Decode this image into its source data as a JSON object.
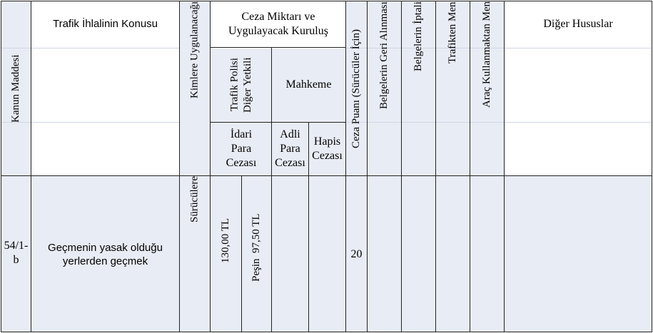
{
  "header": {
    "kanun_maddesi": "Kanun Maddesi",
    "ihlal_konusu": "Trafik İhlalinin Konusu",
    "kimlere": "Kimlere Uygulanacağı",
    "ceza_miktari": "Ceza Miktarı ve Uygulayacak Kuruluş",
    "trafik_polisi": "Trafik Polisi Diğer Yetkili",
    "mahkeme": "Mahkeme",
    "idari_para": "İdari Para Cezası",
    "adli_para": "Adli Para Cezası",
    "hapis": "Hapis Cezası",
    "ceza_puani": "Ceza Puanı (Sürücüler İçin)",
    "belge_geri": "Belgelerin Geri Alınması",
    "belge_iptal": "Belgelerin İptali",
    "trafikten_men": "Trafikten Men",
    "arac_men": "Araç Kullanmaktan Men",
    "diger": "Diğer Hususlar"
  },
  "row": {
    "madde": "54/1-b",
    "konu": "Geçmenin yasak olduğu yerlerden geçmek",
    "kimlere": "Sürücülere",
    "idari_para": "130,00 TL",
    "pesin": "Peşin  97,50 TL",
    "ceza_puani": "20"
  }
}
